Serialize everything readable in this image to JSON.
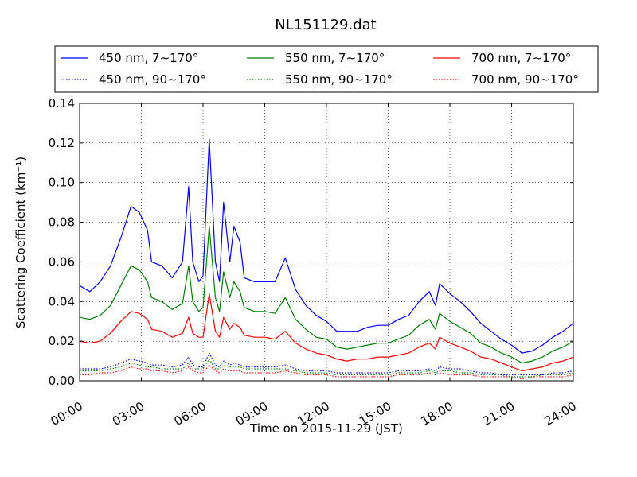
{
  "chart_data": {
    "type": "line",
    "title": "NL151129.dat",
    "xlabel": "Time on 2015-11-29 (JST)",
    "ylabel": "Scattering Coefficient (km⁻¹)",
    "xlim": [
      "00:00",
      "24:00"
    ],
    "ylim": [
      0,
      0.14
    ],
    "grid": true,
    "legend_position": "top (above plot)",
    "x_ticks": [
      "00:00",
      "03:00",
      "06:00",
      "09:00",
      "12:00",
      "15:00",
      "18:00",
      "21:00",
      "24:00"
    ],
    "y_ticks": [
      "0.00",
      "0.02",
      "0.04",
      "0.06",
      "0.08",
      "0.10",
      "0.12",
      "0.14"
    ],
    "x_hours": [
      0,
      0.5,
      1,
      1.5,
      2,
      2.5,
      2.9,
      3.3,
      3.5,
      4,
      4.5,
      5,
      5.3,
      5.5,
      5.8,
      6,
      6.3,
      6.6,
      6.8,
      7,
      7.3,
      7.5,
      7.8,
      8,
      8.5,
      9,
      9.5,
      10,
      10.5,
      11,
      11.5,
      12,
      12.5,
      13,
      13.5,
      14,
      14.5,
      15,
      15.5,
      16,
      16.5,
      17,
      17.3,
      17.5,
      18,
      18.5,
      19,
      19.5,
      20,
      20.5,
      21,
      21.5,
      22,
      22.5,
      23,
      23.5,
      24
    ],
    "series": [
      {
        "name": "450 nm, 7∼170°",
        "color": "#0000ff",
        "style": "solid",
        "values": [
          0.048,
          0.045,
          0.05,
          0.058,
          0.072,
          0.088,
          0.085,
          0.076,
          0.06,
          0.058,
          0.052,
          0.06,
          0.098,
          0.06,
          0.05,
          0.053,
          0.122,
          0.06,
          0.05,
          0.09,
          0.06,
          0.078,
          0.07,
          0.052,
          0.05,
          0.05,
          0.05,
          0.062,
          0.046,
          0.038,
          0.033,
          0.03,
          0.025,
          0.025,
          0.025,
          0.027,
          0.028,
          0.028,
          0.031,
          0.033,
          0.04,
          0.045,
          0.038,
          0.049,
          0.044,
          0.04,
          0.035,
          0.029,
          0.025,
          0.021,
          0.018,
          0.014,
          0.015,
          0.018,
          0.022,
          0.025,
          0.029
        ]
      },
      {
        "name": "550 nm, 7∼170°",
        "color": "#008000",
        "style": "solid",
        "values": [
          0.032,
          0.031,
          0.033,
          0.038,
          0.048,
          0.058,
          0.056,
          0.05,
          0.042,
          0.04,
          0.036,
          0.039,
          0.058,
          0.04,
          0.035,
          0.037,
          0.078,
          0.042,
          0.035,
          0.055,
          0.042,
          0.05,
          0.045,
          0.037,
          0.035,
          0.035,
          0.034,
          0.042,
          0.031,
          0.026,
          0.022,
          0.021,
          0.017,
          0.016,
          0.017,
          0.018,
          0.019,
          0.019,
          0.021,
          0.023,
          0.028,
          0.031,
          0.026,
          0.034,
          0.03,
          0.027,
          0.024,
          0.019,
          0.017,
          0.014,
          0.012,
          0.009,
          0.01,
          0.012,
          0.015,
          0.017,
          0.02
        ]
      },
      {
        "name": "700 nm, 7∼170°",
        "color": "#ff0000",
        "style": "solid",
        "values": [
          0.02,
          0.019,
          0.02,
          0.024,
          0.03,
          0.035,
          0.034,
          0.031,
          0.026,
          0.025,
          0.022,
          0.024,
          0.032,
          0.024,
          0.022,
          0.022,
          0.044,
          0.025,
          0.022,
          0.032,
          0.026,
          0.029,
          0.027,
          0.023,
          0.022,
          0.022,
          0.021,
          0.025,
          0.019,
          0.016,
          0.014,
          0.013,
          0.011,
          0.01,
          0.011,
          0.011,
          0.012,
          0.012,
          0.013,
          0.014,
          0.017,
          0.019,
          0.016,
          0.022,
          0.019,
          0.017,
          0.015,
          0.012,
          0.011,
          0.009,
          0.007,
          0.005,
          0.006,
          0.007,
          0.009,
          0.01,
          0.012
        ]
      },
      {
        "name": "450 nm, 90∼170°",
        "color": "#0000ff",
        "style": "dotted",
        "values": [
          0.006,
          0.006,
          0.006,
          0.007,
          0.009,
          0.011,
          0.01,
          0.009,
          0.008,
          0.008,
          0.007,
          0.008,
          0.012,
          0.008,
          0.007,
          0.007,
          0.014,
          0.008,
          0.007,
          0.01,
          0.008,
          0.009,
          0.008,
          0.007,
          0.007,
          0.007,
          0.007,
          0.008,
          0.006,
          0.005,
          0.005,
          0.005,
          0.004,
          0.004,
          0.004,
          0.004,
          0.004,
          0.004,
          0.005,
          0.005,
          0.005,
          0.006,
          0.005,
          0.007,
          0.006,
          0.006,
          0.005,
          0.004,
          0.004,
          0.003,
          0.003,
          0.003,
          0.003,
          0.003,
          0.004,
          0.004,
          0.005
        ]
      },
      {
        "name": "550 nm, 90∼170°",
        "color": "#008000",
        "style": "dotted",
        "values": [
          0.005,
          0.005,
          0.005,
          0.006,
          0.007,
          0.009,
          0.008,
          0.007,
          0.007,
          0.006,
          0.006,
          0.006,
          0.009,
          0.006,
          0.006,
          0.006,
          0.011,
          0.006,
          0.006,
          0.008,
          0.007,
          0.007,
          0.007,
          0.006,
          0.006,
          0.006,
          0.006,
          0.006,
          0.005,
          0.004,
          0.004,
          0.004,
          0.003,
          0.003,
          0.003,
          0.003,
          0.003,
          0.003,
          0.004,
          0.004,
          0.004,
          0.005,
          0.004,
          0.005,
          0.005,
          0.004,
          0.004,
          0.003,
          0.003,
          0.003,
          0.002,
          0.002,
          0.002,
          0.003,
          0.003,
          0.003,
          0.004
        ]
      },
      {
        "name": "700 nm, 90∼170°",
        "color": "#ff0000",
        "style": "dotted",
        "values": [
          0.003,
          0.003,
          0.004,
          0.004,
          0.005,
          0.007,
          0.006,
          0.006,
          0.005,
          0.005,
          0.004,
          0.005,
          0.007,
          0.005,
          0.004,
          0.004,
          0.008,
          0.005,
          0.004,
          0.006,
          0.005,
          0.005,
          0.005,
          0.004,
          0.004,
          0.004,
          0.004,
          0.005,
          0.004,
          0.003,
          0.003,
          0.003,
          0.002,
          0.002,
          0.002,
          0.002,
          0.002,
          0.002,
          0.003,
          0.003,
          0.003,
          0.004,
          0.003,
          0.004,
          0.003,
          0.003,
          0.003,
          0.002,
          0.002,
          0.002,
          0.002,
          0.001,
          0.002,
          0.002,
          0.002,
          0.002,
          0.003
        ]
      }
    ]
  }
}
